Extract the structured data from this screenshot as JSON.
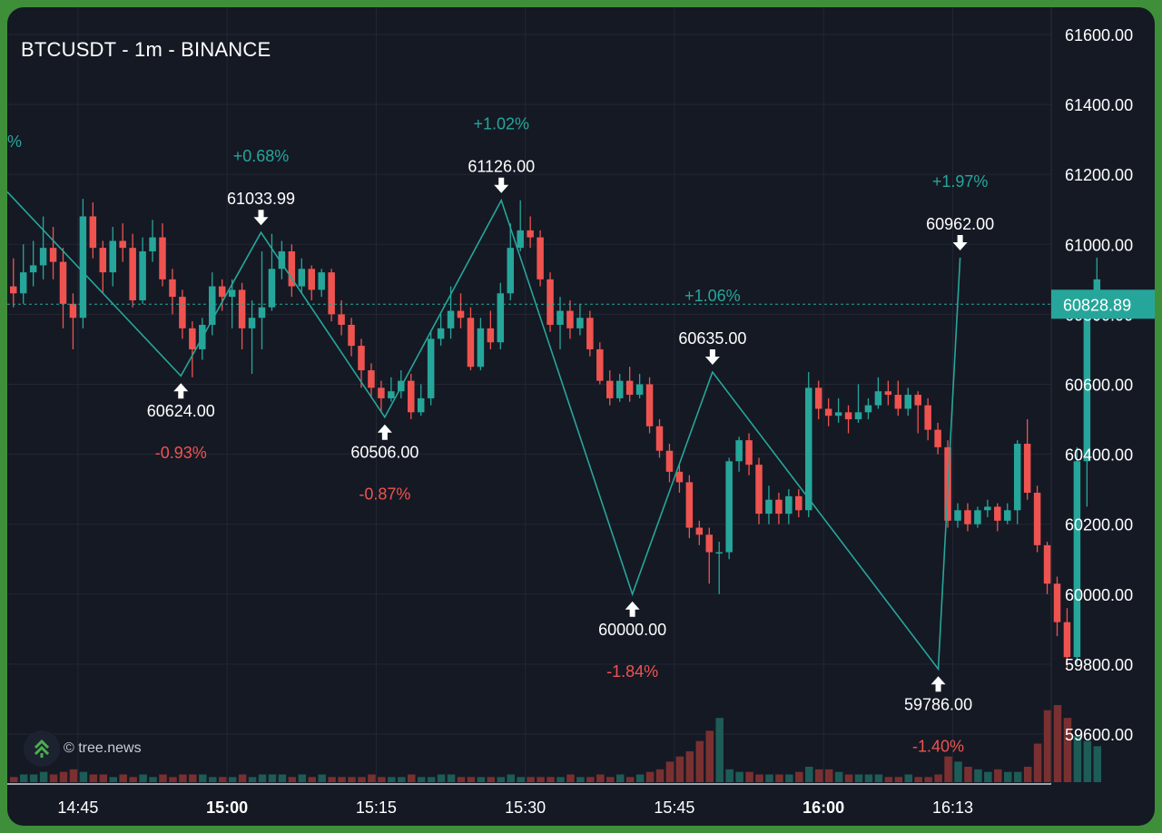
{
  "title": "BTCUSDT - 1m - BINANCE",
  "watermark": "© tree.news",
  "colors": {
    "background": "#151924",
    "up": "#26a69a",
    "down": "#ef5350",
    "zigzag": "#26a69a",
    "grid": "#232734",
    "price_tag": "#26a69a"
  },
  "chart_data": {
    "type": "candlestick",
    "y_axis": {
      "min": 59470,
      "max": 61650,
      "ticks": [
        61600,
        61400,
        61200,
        61000,
        60800,
        60600,
        60400,
        60200,
        60000,
        59800,
        59600
      ],
      "tick_labels": [
        "61600.00",
        "61400.00",
        "61200.00",
        "61000.00",
        "60800.00",
        "60600.00",
        "60400.00",
        "60200.00",
        "60000.00",
        "59800.00",
        "59600.00"
      ]
    },
    "x_axis": {
      "ticks": [
        {
          "label": "14:45",
          "bold": false,
          "index": 6.5
        },
        {
          "label": "15:00",
          "bold": true,
          "index": 21.5
        },
        {
          "label": "15:15",
          "bold": false,
          "index": 36.5
        },
        {
          "label": "15:30",
          "bold": false,
          "index": 51.5
        },
        {
          "label": "15:45",
          "bold": false,
          "index": 66.5
        },
        {
          "label": "16:00",
          "bold": true,
          "index": 81.5
        },
        {
          "label": "16:13",
          "bold": false,
          "index": 94.5
        }
      ]
    },
    "current_price": 60828.89,
    "current_price_label": "60828.89",
    "candles": [
      [
        60880,
        60860,
        60960,
        60820
      ],
      [
        60860,
        60920,
        61000,
        60830
      ],
      [
        60920,
        60940,
        61010,
        60880
      ],
      [
        60940,
        60990,
        61080,
        60900
      ],
      [
        60990,
        60950,
        61050,
        60900
      ],
      [
        60950,
        60830,
        60990,
        60760
      ],
      [
        60830,
        60790,
        60860,
        60700
      ],
      [
        60790,
        61080,
        61130,
        60760
      ],
      [
        61080,
        60990,
        61120,
        60960
      ],
      [
        60990,
        60920,
        61010,
        60860
      ],
      [
        60920,
        61010,
        61050,
        60880
      ],
      [
        61010,
        60990,
        61060,
        60950
      ],
      [
        60990,
        60840,
        61030,
        60820
      ],
      [
        60840,
        60980,
        61020,
        60830
      ],
      [
        60980,
        61020,
        61070,
        60950
      ],
      [
        61020,
        60900,
        61060,
        60880
      ],
      [
        60900,
        60850,
        60930,
        60800
      ],
      [
        60850,
        60760,
        60870,
        60730
      ],
      [
        60760,
        60700,
        60780,
        60620
      ],
      [
        60700,
        60770,
        60790,
        60670
      ],
      [
        60770,
        60880,
        60920,
        60740
      ],
      [
        60880,
        60850,
        60900,
        60810
      ],
      [
        60850,
        60870,
        60900,
        60760
      ],
      [
        60870,
        60760,
        60890,
        60700
      ],
      [
        60760,
        60790,
        60840,
        60630
      ],
      [
        60790,
        60820,
        60980,
        60700
      ],
      [
        60820,
        60930,
        61030,
        60810
      ],
      [
        60930,
        60980,
        61010,
        60900
      ],
      [
        60980,
        60880,
        61000,
        60850
      ],
      [
        60880,
        60930,
        60960,
        60860
      ],
      [
        60930,
        60870,
        60940,
        60840
      ],
      [
        60870,
        60920,
        60930,
        60850
      ],
      [
        60920,
        60800,
        60930,
        60780
      ],
      [
        60800,
        60770,
        60840,
        60740
      ],
      [
        60770,
        60710,
        60790,
        60680
      ],
      [
        60710,
        60640,
        60730,
        60590
      ],
      [
        60640,
        60590,
        60660,
        60560
      ],
      [
        60590,
        60560,
        60610,
        60520
      ],
      [
        60560,
        60580,
        60620,
        60550
      ],
      [
        60580,
        60610,
        60640,
        60560
      ],
      [
        60610,
        60520,
        60630,
        60500
      ],
      [
        60520,
        60560,
        60600,
        60510
      ],
      [
        60560,
        60730,
        60750,
        60540
      ],
      [
        60730,
        60760,
        60800,
        60710
      ],
      [
        60760,
        60810,
        60880,
        60730
      ],
      [
        60810,
        60790,
        60860,
        60760
      ],
      [
        60790,
        60650,
        60820,
        60640
      ],
      [
        60650,
        60760,
        60790,
        60640
      ],
      [
        60760,
        60720,
        60810,
        60700
      ],
      [
        60720,
        60860,
        60890,
        60700
      ],
      [
        60860,
        60990,
        61060,
        60840
      ],
      [
        60990,
        61040,
        61126,
        60980
      ],
      [
        61040,
        61020,
        61080,
        60990
      ],
      [
        61020,
        60900,
        61040,
        60880
      ],
      [
        60900,
        60770,
        60920,
        60750
      ],
      [
        60770,
        60810,
        60850,
        60700
      ],
      [
        60810,
        60760,
        60840,
        60730
      ],
      [
        60760,
        60790,
        60830,
        60740
      ],
      [
        60790,
        60700,
        60810,
        60680
      ],
      [
        60700,
        60610,
        60720,
        60600
      ],
      [
        60610,
        60560,
        60640,
        60540
      ],
      [
        60560,
        60610,
        60630,
        60550
      ],
      [
        60610,
        60570,
        60650,
        60550
      ],
      [
        60570,
        60600,
        60630,
        60560
      ],
      [
        60600,
        60480,
        60620,
        60460
      ],
      [
        60480,
        60410,
        60500,
        60390
      ],
      [
        60410,
        60350,
        60430,
        60320
      ],
      [
        60350,
        60320,
        60370,
        60290
      ],
      [
        60320,
        60190,
        60340,
        60160
      ],
      [
        60190,
        60170,
        60210,
        60140
      ],
      [
        60170,
        60120,
        60190,
        60030
      ],
      [
        60120,
        60120,
        60150,
        60000
      ],
      [
        60120,
        60380,
        60390,
        60100
      ],
      [
        60380,
        60440,
        60450,
        60350
      ],
      [
        60440,
        60370,
        60460,
        60340
      ],
      [
        60370,
        60230,
        60390,
        60200
      ],
      [
        60230,
        60270,
        60310,
        60200
      ],
      [
        60270,
        60230,
        60290,
        60200
      ],
      [
        60230,
        60280,
        60300,
        60200
      ],
      [
        60280,
        60240,
        60300,
        60220
      ],
      [
        60240,
        60590,
        60635,
        60220
      ],
      [
        60590,
        60530,
        60610,
        60500
      ],
      [
        60530,
        60510,
        60560,
        60480
      ],
      [
        60510,
        60520,
        60560,
        60490
      ],
      [
        60520,
        60500,
        60540,
        60460
      ],
      [
        60500,
        60520,
        60600,
        60490
      ],
      [
        60520,
        60540,
        60560,
        60500
      ],
      [
        60540,
        60580,
        60620,
        60530
      ],
      [
        60580,
        60570,
        60610,
        60540
      ],
      [
        60570,
        60530,
        60610,
        60510
      ],
      [
        60530,
        60570,
        60590,
        60510
      ],
      [
        60570,
        60540,
        60580,
        60460
      ],
      [
        60540,
        60470,
        60560,
        60440
      ],
      [
        60470,
        60420,
        60490,
        60400
      ],
      [
        60420,
        60210,
        60440,
        60190
      ],
      [
        60210,
        60240,
        60260,
        60190
      ],
      [
        60240,
        60200,
        60260,
        60180
      ],
      [
        60200,
        60240,
        60250,
        60190
      ],
      [
        60240,
        60250,
        60270,
        60220
      ],
      [
        60250,
        60210,
        60260,
        60180
      ],
      [
        60210,
        60240,
        60260,
        60200
      ],
      [
        60240,
        60430,
        60440,
        60200
      ],
      [
        60430,
        60290,
        60500,
        60270
      ],
      [
        60290,
        60140,
        60310,
        60120
      ],
      [
        60140,
        60030,
        60150,
        60000
      ],
      [
        60030,
        59920,
        60050,
        59880
      ],
      [
        59920,
        59820,
        59960,
        59786
      ],
      [
        59820,
        60380,
        60420,
        59800
      ],
      [
        60380,
        60800,
        60810,
        60250
      ],
      [
        60800,
        60900,
        60962,
        60780
      ]
    ],
    "volumes": [
      2,
      3,
      3,
      4,
      3,
      4,
      5,
      4,
      3,
      3,
      2,
      3,
      2,
      3,
      2,
      3,
      2,
      3,
      3,
      3,
      2,
      2,
      2,
      3,
      2,
      3,
      3,
      3,
      2,
      3,
      2,
      3,
      2,
      2,
      2,
      2,
      3,
      2,
      2,
      2,
      3,
      2,
      2,
      3,
      3,
      2,
      2,
      2,
      2,
      2,
      3,
      2,
      2,
      2,
      2,
      2,
      3,
      2,
      2,
      3,
      2,
      3,
      2,
      3,
      4,
      5,
      8,
      10,
      12,
      16,
      20,
      25,
      5,
      4,
      4,
      3,
      3,
      3,
      3,
      4,
      6,
      5,
      5,
      4,
      3,
      3,
      3,
      3,
      2,
      2,
      3,
      2,
      2,
      3,
      10,
      8,
      6,
      5,
      4,
      5,
      4,
      4,
      6,
      15,
      28,
      30,
      25,
      18,
      16,
      14
    ],
    "volume_scale_max": 60,
    "zigzag": [
      {
        "index": -1,
        "price": 61150,
        "label": "",
        "change": "",
        "kind": "start"
      },
      {
        "index": 23,
        "price": 60624,
        "label": "60624.00",
        "change": "-0.93%",
        "kind": "low"
      },
      {
        "index": 34,
        "price": 61033.99,
        "label": "61033.99",
        "change": "+0.68%",
        "kind": "high"
      },
      {
        "index": 51,
        "price": 60506,
        "label": "60506.00",
        "change": "-0.87%",
        "kind": "low"
      },
      {
        "index": 67,
        "price": 61126,
        "label": "61126.00",
        "change": "+1.02%",
        "kind": "high"
      },
      {
        "index": 85,
        "price": 60000,
        "label": "60000.00",
        "change": "-1.84%",
        "kind": "low"
      },
      {
        "index": 96,
        "price": 60635,
        "label": "60635.00",
        "change": "+1.06%",
        "kind": "high"
      },
      {
        "index": 127,
        "price": 59786,
        "label": "59786.00",
        "change": "-1.40%",
        "kind": "low"
      },
      {
        "index": 130,
        "price": 60962,
        "label": "60962.00",
        "change": "+1.97%",
        "kind": "high"
      }
    ],
    "left_edge_change": "%"
  }
}
